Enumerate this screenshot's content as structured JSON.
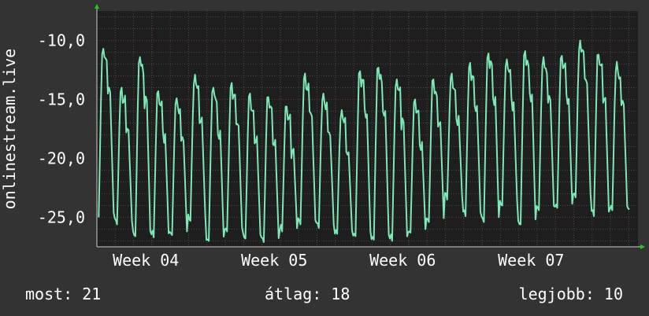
{
  "chart_data": {
    "type": "line",
    "ylabel": "onlinestream.live",
    "yticks": [
      "-10,0",
      "-15,0",
      "-20,0",
      "-25,0"
    ],
    "ytick_values": [
      -10,
      -15,
      -20,
      -25
    ],
    "ylim": [
      -27.5,
      -7.5
    ],
    "xticks": [
      "Week 04",
      "Week 05",
      "Week 06",
      "Week 07"
    ],
    "xlim": [
      0,
      29.5
    ],
    "grid": true,
    "colors": {
      "background": "#333333",
      "plot": "#1e1e1e",
      "grid": "#4a4a4a",
      "line": "#7de8b4",
      "major_grid": "#6b3b3b",
      "axis_arrow": "#22cc22"
    },
    "series": [
      {
        "days": [
          {
            "max": -10.7,
            "min": -25.0
          },
          {
            "max": -14.0,
            "min": -25.6
          },
          {
            "max": -11.4,
            "min": -26.6
          },
          {
            "max": -14.3,
            "min": -26.7
          },
          {
            "max": -14.9,
            "min": -26.5
          },
          {
            "max": -12.9,
            "min": -25.3
          },
          {
            "max": -14.0,
            "min": -27.0
          },
          {
            "max": -13.6,
            "min": -26.2
          },
          {
            "max": -14.5,
            "min": -26.8
          },
          {
            "max": -14.8,
            "min": -27.1
          },
          {
            "max": -15.6,
            "min": -26.2
          },
          {
            "max": -12.8,
            "min": -25.6
          },
          {
            "max": -14.5,
            "min": -25.9
          },
          {
            "max": -15.9,
            "min": -26.4
          },
          {
            "max": -12.6,
            "min": -26.6
          },
          {
            "max": -12.3,
            "min": -26.9
          },
          {
            "max": -13.3,
            "min": -27.0
          },
          {
            "max": -15.0,
            "min": -26.3
          },
          {
            "max": -13.3,
            "min": -25.4
          },
          {
            "max": -12.8,
            "min": -23.5
          },
          {
            "max": -11.9,
            "min": -24.9
          },
          {
            "max": -11.1,
            "min": -25.4
          },
          {
            "max": -11.6,
            "min": -24.0
          },
          {
            "max": -10.9,
            "min": -25.6
          },
          {
            "max": -11.4,
            "min": -24.4
          },
          {
            "max": -11.3,
            "min": -24.2
          },
          {
            "max": -10.0,
            "min": -23.3
          },
          {
            "max": -11.2,
            "min": -24.9
          },
          {
            "max": -11.8,
            "min": -24.4
          }
        ]
      }
    ]
  },
  "stats": {
    "now": "most: 21",
    "avg": "átlag: 18",
    "max": "legjobb: 10"
  }
}
